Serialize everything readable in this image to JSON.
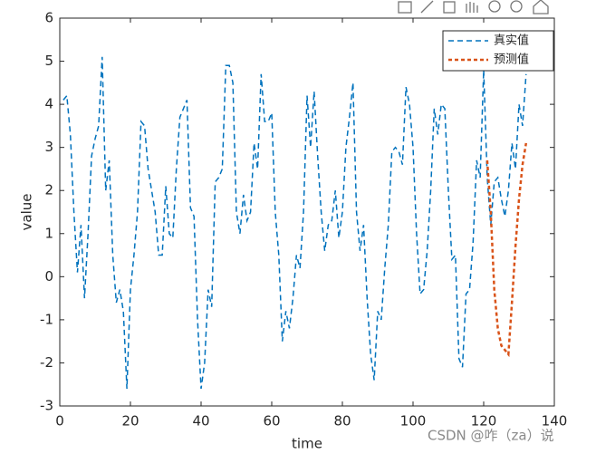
{
  "chart_data": {
    "type": "line",
    "xlabel": "time",
    "ylabel": "value",
    "xlim": [
      0,
      140
    ],
    "xticks": [
      0,
      20,
      40,
      60,
      80,
      100,
      120,
      140
    ],
    "ylim": [
      -3,
      6
    ],
    "yticks": [
      -3,
      -2,
      -1,
      0,
      1,
      2,
      3,
      4,
      5,
      6
    ],
    "legend": "upper right",
    "series": [
      {
        "name": "真实值",
        "color": "#0072BD",
        "dash": "6,4",
        "x": [
          1,
          2,
          3,
          4,
          5,
          6,
          7,
          8,
          9,
          10,
          11,
          12,
          13,
          14,
          15,
          16,
          17,
          18,
          19,
          20,
          21,
          22,
          23,
          24,
          25,
          26,
          27,
          28,
          29,
          30,
          31,
          32,
          33,
          34,
          35,
          36,
          37,
          38,
          39,
          40,
          41,
          42,
          43,
          44,
          45,
          46,
          47,
          48,
          49,
          50,
          51,
          52,
          53,
          54,
          55,
          56,
          57,
          58,
          59,
          60,
          61,
          62,
          63,
          64,
          65,
          66,
          67,
          68,
          69,
          70,
          71,
          72,
          73,
          74,
          75,
          76,
          77,
          78,
          79,
          80,
          81,
          82,
          83,
          84,
          85,
          86,
          87,
          88,
          89,
          90,
          91,
          92,
          93,
          94,
          95,
          96,
          97,
          98,
          99,
          100,
          101,
          102,
          103,
          104,
          105,
          106,
          107,
          108,
          109,
          110,
          111,
          112,
          113,
          114,
          115,
          116,
          117,
          118,
          119,
          120,
          121,
          122,
          123,
          124,
          125,
          126,
          127,
          128,
          129,
          130,
          131,
          132
        ],
        "values": [
          4.1,
          4.2,
          3.3,
          1.5,
          0.1,
          1.2,
          -0.5,
          1.0,
          2.8,
          3.2,
          3.5,
          5.1,
          2.0,
          2.7,
          0.5,
          -0.6,
          -0.3,
          -0.8,
          -2.6,
          -0.3,
          0.5,
          1.5,
          3.6,
          3.5,
          2.5,
          2.0,
          1.5,
          0.5,
          0.5,
          2.1,
          1.0,
          0.9,
          2.5,
          3.7,
          3.9,
          4.1,
          1.6,
          1.4,
          -1.0,
          -2.6,
          -2.0,
          -0.3,
          -0.7,
          2.2,
          2.3,
          2.5,
          4.9,
          4.9,
          4.5,
          1.5,
          1.0,
          1.9,
          1.3,
          1.5,
          3.1,
          2.5,
          4.7,
          3.6,
          3.6,
          3.8,
          1.5,
          0.5,
          -1.5,
          -0.8,
          -1.2,
          -0.5,
          0.5,
          0.2,
          1.5,
          4.2,
          3.0,
          4.3,
          2.8,
          1.5,
          0.6,
          1.2,
          1.3,
          2.0,
          0.9,
          1.5,
          3.0,
          3.7,
          4.5,
          1.5,
          0.6,
          1.2,
          -0.5,
          -1.8,
          -2.4,
          -0.8,
          -1.0,
          0.2,
          1.2,
          2.9,
          3.0,
          2.9,
          2.6,
          4.4,
          4.0,
          3.0,
          1.0,
          -0.4,
          -0.3,
          0.6,
          2.0,
          3.9,
          3.3,
          4.0,
          3.9,
          2.0,
          0.4,
          0.5,
          -1.9,
          -2.1,
          -0.4,
          -0.3,
          0.8,
          2.7,
          2.3,
          4.8,
          2.3,
          1.2,
          2.2,
          2.3,
          1.8,
          1.4,
          2.0,
          3.1,
          2.5,
          4.0,
          3.5,
          4.7
        ]
      },
      {
        "name": "预测值",
        "color": "#D95319",
        "dash": "4,3",
        "x": [
          121,
          122,
          123,
          124,
          125,
          126,
          127,
          128,
          129,
          130,
          131,
          132
        ],
        "values": [
          2.7,
          1.5,
          -0.3,
          -1.2,
          -1.6,
          -1.7,
          -1.8,
          -0.6,
          0.7,
          1.8,
          2.6,
          3.1
        ]
      }
    ]
  },
  "watermark": "CSDN @咋（za）说"
}
